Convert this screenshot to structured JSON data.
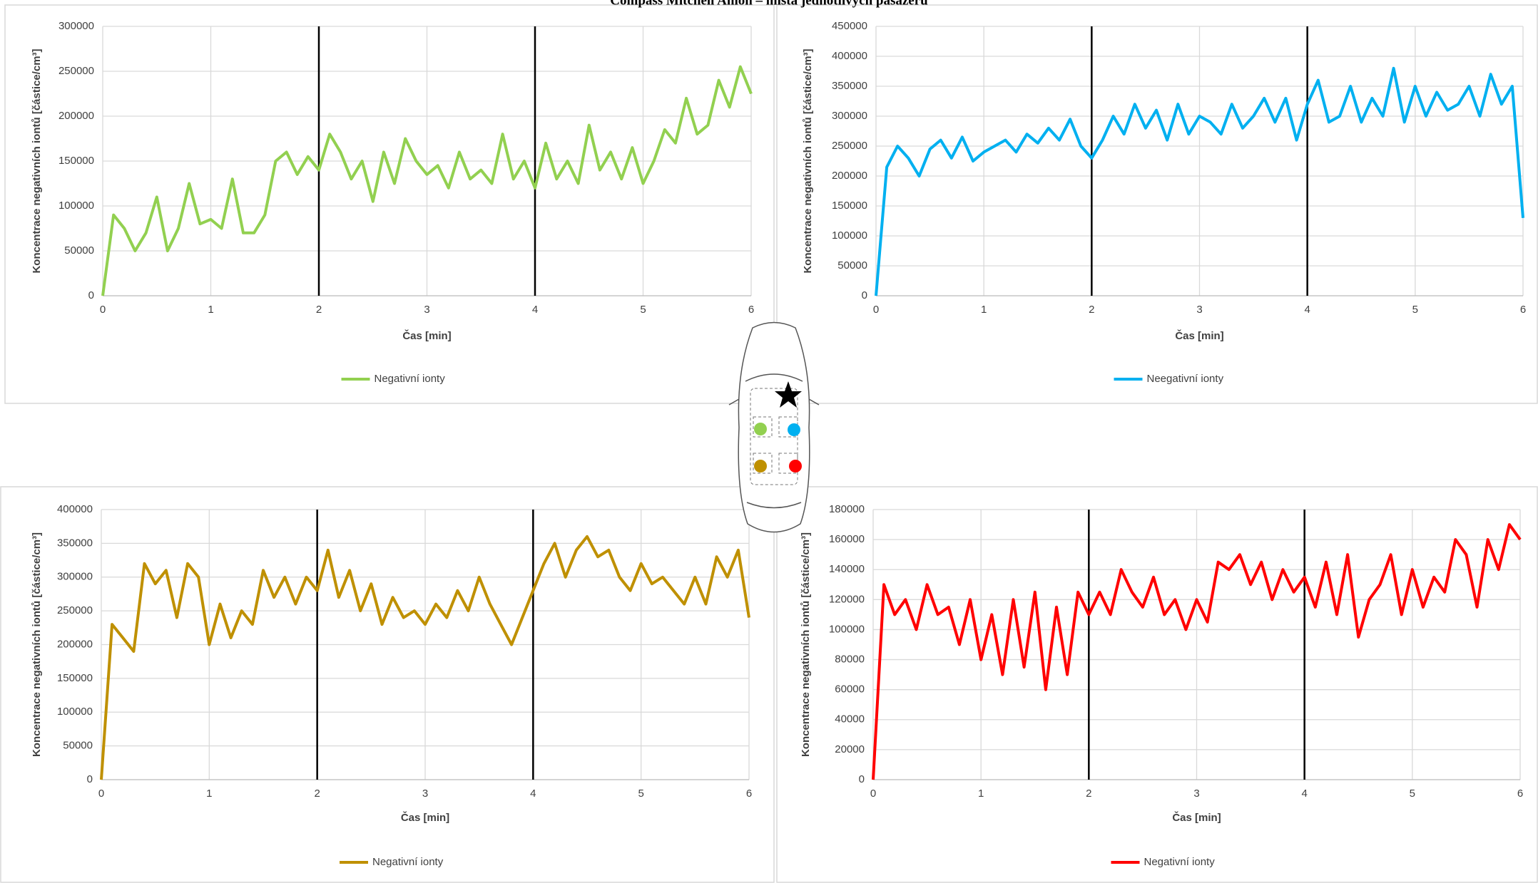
{
  "title": "Compass Mitchell Anion – místa jednotlivých pasažérů",
  "chart_data": [
    {
      "type": "line",
      "xlabel": "Čas [min]",
      "ylabel": "Koncentrace negativních iontů [částice/cm³]",
      "x": [
        0,
        0.1,
        0.2,
        0.3,
        0.4,
        0.5,
        0.6,
        0.7,
        0.8,
        0.9,
        1,
        1.1,
        1.2,
        1.3,
        1.4,
        1.5,
        1.6,
        1.7,
        1.8,
        1.9,
        2,
        2.1,
        2.2,
        2.3,
        2.4,
        2.5,
        2.6,
        2.7,
        2.8,
        2.9,
        3,
        3.1,
        3.2,
        3.3,
        3.4,
        3.5,
        3.6,
        3.7,
        3.8,
        3.9,
        4,
        4.1,
        4.2,
        4.3,
        4.4,
        4.5,
        4.6,
        4.7,
        4.8,
        4.9,
        5,
        5.1,
        5.2,
        5.3,
        5.4,
        5.5,
        5.6,
        5.7,
        5.8,
        5.9,
        6
      ],
      "series": [
        {
          "name": "Negativní ionty",
          "color": "#92d050",
          "values": [
            0,
            90000,
            75000,
            50000,
            70000,
            110000,
            50000,
            75000,
            125000,
            80000,
            85000,
            75000,
            130000,
            70000,
            70000,
            90000,
            150000,
            160000,
            135000,
            155000,
            140000,
            180000,
            160000,
            130000,
            150000,
            105000,
            160000,
            125000,
            175000,
            150000,
            135000,
            145000,
            120000,
            160000,
            130000,
            140000,
            125000,
            180000,
            130000,
            150000,
            120000,
            170000,
            130000,
            150000,
            125000,
            190000,
            140000,
            160000,
            130000,
            165000,
            125000,
            150000,
            185000,
            170000,
            220000,
            180000,
            190000,
            240000,
            210000,
            255000,
            225000
          ]
        }
      ],
      "xlim": [
        0,
        6
      ],
      "xticks": [
        0,
        1,
        2,
        3,
        4,
        5,
        6
      ],
      "ylim": [
        0,
        300000
      ],
      "yticks": [
        0,
        50000,
        100000,
        150000,
        200000,
        250000,
        300000
      ],
      "vlines": [
        2,
        4
      ],
      "grid": true
    },
    {
      "type": "line",
      "xlabel": "Čas [min]",
      "ylabel": "Koncentrace negativních iontů [částice/cm³]",
      "x": [
        0,
        0.1,
        0.2,
        0.3,
        0.4,
        0.5,
        0.6,
        0.7,
        0.8,
        0.9,
        1,
        1.1,
        1.2,
        1.3,
        1.4,
        1.5,
        1.6,
        1.7,
        1.8,
        1.9,
        2,
        2.1,
        2.2,
        2.3,
        2.4,
        2.5,
        2.6,
        2.7,
        2.8,
        2.9,
        3,
        3.1,
        3.2,
        3.3,
        3.4,
        3.5,
        3.6,
        3.7,
        3.8,
        3.9,
        4,
        4.1,
        4.2,
        4.3,
        4.4,
        4.5,
        4.6,
        4.7,
        4.8,
        4.9,
        5,
        5.1,
        5.2,
        5.3,
        5.4,
        5.5,
        5.6,
        5.7,
        5.8,
        5.9,
        6
      ],
      "series": [
        {
          "name": "Neegativní ionty",
          "color": "#00b0f0",
          "values": [
            0,
            215000,
            250000,
            230000,
            200000,
            245000,
            260000,
            230000,
            265000,
            225000,
            240000,
            250000,
            260000,
            240000,
            270000,
            255000,
            280000,
            260000,
            295000,
            250000,
            230000,
            260000,
            300000,
            270000,
            320000,
            280000,
            310000,
            260000,
            320000,
            270000,
            300000,
            290000,
            270000,
            320000,
            280000,
            300000,
            330000,
            290000,
            330000,
            260000,
            320000,
            360000,
            290000,
            300000,
            350000,
            290000,
            330000,
            300000,
            380000,
            290000,
            350000,
            300000,
            340000,
            310000,
            320000,
            350000,
            300000,
            370000,
            320000,
            350000,
            130000
          ]
        }
      ],
      "xlim": [
        0,
        6
      ],
      "xticks": [
        0,
        1,
        2,
        3,
        4,
        5,
        6
      ],
      "ylim": [
        0,
        450000
      ],
      "yticks": [
        0,
        50000,
        100000,
        150000,
        200000,
        250000,
        300000,
        350000,
        400000,
        450000
      ],
      "vlines": [
        2,
        4
      ],
      "grid": true
    },
    {
      "type": "line",
      "xlabel": "Čas [min]",
      "ylabel": "Koncentrace negativních iontů [částice/cm³]",
      "x": [
        0,
        0.1,
        0.2,
        0.3,
        0.4,
        0.5,
        0.6,
        0.7,
        0.8,
        0.9,
        1,
        1.1,
        1.2,
        1.3,
        1.4,
        1.5,
        1.6,
        1.7,
        1.8,
        1.9,
        2,
        2.1,
        2.2,
        2.3,
        2.4,
        2.5,
        2.6,
        2.7,
        2.8,
        2.9,
        3,
        3.1,
        3.2,
        3.3,
        3.4,
        3.5,
        3.6,
        3.7,
        3.8,
        3.9,
        4,
        4.1,
        4.2,
        4.3,
        4.4,
        4.5,
        4.6,
        4.7,
        4.8,
        4.9,
        5,
        5.1,
        5.2,
        5.3,
        5.4,
        5.5,
        5.6,
        5.7,
        5.8,
        5.9,
        6
      ],
      "series": [
        {
          "name": "Negativní ionty",
          "color": "#bf9000",
          "values": [
            0,
            230000,
            210000,
            190000,
            320000,
            290000,
            310000,
            240000,
            320000,
            300000,
            200000,
            260000,
            210000,
            250000,
            230000,
            310000,
            270000,
            300000,
            260000,
            300000,
            280000,
            340000,
            270000,
            310000,
            250000,
            290000,
            230000,
            270000,
            240000,
            250000,
            230000,
            260000,
            240000,
            280000,
            250000,
            300000,
            260000,
            230000,
            200000,
            240000,
            280000,
            320000,
            350000,
            300000,
            340000,
            360000,
            330000,
            340000,
            300000,
            280000,
            320000,
            290000,
            300000,
            280000,
            260000,
            300000,
            260000,
            330000,
            300000,
            340000,
            240000
          ]
        }
      ],
      "xlim": [
        0,
        6
      ],
      "xticks": [
        0,
        1,
        2,
        3,
        4,
        5,
        6
      ],
      "ylim": [
        0,
        400000
      ],
      "yticks": [
        0,
        50000,
        100000,
        150000,
        200000,
        250000,
        300000,
        350000,
        400000
      ],
      "vlines": [
        2,
        4
      ],
      "grid": true
    },
    {
      "type": "line",
      "xlabel": "Čas [min]",
      "ylabel": "Koncentrace negativních iontů [částice/cm³]",
      "x": [
        0,
        0.1,
        0.2,
        0.3,
        0.4,
        0.5,
        0.6,
        0.7,
        0.8,
        0.9,
        1,
        1.1,
        1.2,
        1.3,
        1.4,
        1.5,
        1.6,
        1.7,
        1.8,
        1.9,
        2,
        2.1,
        2.2,
        2.3,
        2.4,
        2.5,
        2.6,
        2.7,
        2.8,
        2.9,
        3,
        3.1,
        3.2,
        3.3,
        3.4,
        3.5,
        3.6,
        3.7,
        3.8,
        3.9,
        4,
        4.1,
        4.2,
        4.3,
        4.4,
        4.5,
        4.6,
        4.7,
        4.8,
        4.9,
        5,
        5.1,
        5.2,
        5.3,
        5.4,
        5.5,
        5.6,
        5.7,
        5.8,
        5.9,
        6
      ],
      "series": [
        {
          "name": "Negativní ionty",
          "color": "#ff0000",
          "values": [
            0,
            130000,
            110000,
            120000,
            100000,
            130000,
            110000,
            115000,
            90000,
            120000,
            80000,
            110000,
            70000,
            120000,
            75000,
            125000,
            60000,
            115000,
            70000,
            125000,
            110000,
            125000,
            110000,
            140000,
            125000,
            115000,
            135000,
            110000,
            120000,
            100000,
            120000,
            105000,
            145000,
            140000,
            150000,
            130000,
            145000,
            120000,
            140000,
            125000,
            135000,
            115000,
            145000,
            110000,
            150000,
            95000,
            120000,
            130000,
            150000,
            110000,
            140000,
            115000,
            135000,
            125000,
            160000,
            150000,
            115000,
            160000,
            140000,
            170000,
            160000
          ]
        }
      ],
      "xlim": [
        0,
        6
      ],
      "xticks": [
        0,
        1,
        2,
        3,
        4,
        5,
        6
      ],
      "ylim": [
        0,
        180000
      ],
      "yticks": [
        0,
        20000,
        40000,
        60000,
        80000,
        100000,
        120000,
        140000,
        160000,
        180000
      ],
      "vlines": [
        2,
        4
      ],
      "grid": true
    }
  ]
}
